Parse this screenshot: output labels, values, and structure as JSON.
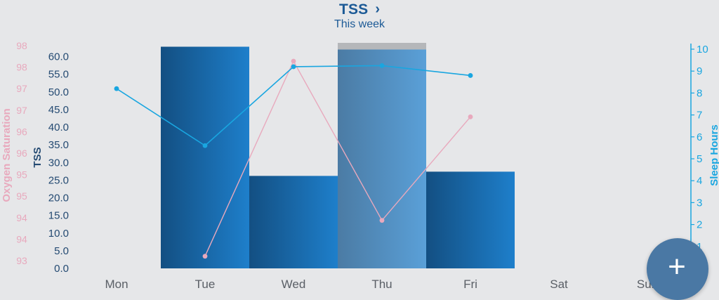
{
  "header": {
    "title": "TSS",
    "subtitle": "This week"
  },
  "fab": {
    "icon": "plus-icon",
    "label": "+"
  },
  "colors": {
    "tss_bar_dark": "#134f82",
    "tss_bar_light": "#1e7fcb",
    "selected_bar_dark": "#4b7ba4",
    "selected_bar_light": "#5aa0d8",
    "selected_cap": "#b5b7ba",
    "oxygen": "#e8a9bd",
    "sleep": "#19a6e0",
    "tss_axis": "#244a72"
  },
  "chart_data": {
    "type": "bar",
    "categories": [
      "Mon",
      "Tue",
      "Wed",
      "Thu",
      "Fri",
      "Sat",
      "Sun"
    ],
    "selected_category": "Thu",
    "series": [
      {
        "name": "TSS",
        "type": "bar",
        "axis": "left",
        "values": [
          null,
          62.8,
          26.2,
          62.0,
          27.4,
          null,
          null
        ]
      },
      {
        "name": "Oxygen Saturation",
        "type": "line",
        "axis": "far-left",
        "values": [
          null,
          93.0,
          97.9,
          93.9,
          96.5,
          null,
          null
        ]
      },
      {
        "name": "Sleep Hours",
        "type": "line",
        "axis": "right",
        "values": [
          8.2,
          5.6,
          9.2,
          9.25,
          8.8,
          null,
          null
        ]
      }
    ],
    "axes": {
      "tss": {
        "label": "TSS",
        "ylim": [
          0,
          62.5
        ],
        "ticks": [
          "0.0",
          "5.0",
          "10.0",
          "15.0",
          "20.0",
          "25.0",
          "30.0",
          "35.0",
          "40.0",
          "45.0",
          "50.0",
          "55.0",
          "60.0"
        ]
      },
      "oxygen": {
        "label": "Oxygen Saturation",
        "ylim": [
          92.8,
          98.2
        ],
        "ticks": [
          "93",
          "94",
          "94",
          "95",
          "95",
          "96",
          "96",
          "97",
          "97",
          "98",
          "98"
        ]
      },
      "sleep": {
        "label": "Sleep Hours",
        "ylim": [
          0,
          10
        ],
        "ticks": [
          "1",
          "2",
          "3",
          "4",
          "5",
          "6",
          "7",
          "8",
          "9",
          "10"
        ]
      }
    },
    "grid": false,
    "legend": "none"
  }
}
